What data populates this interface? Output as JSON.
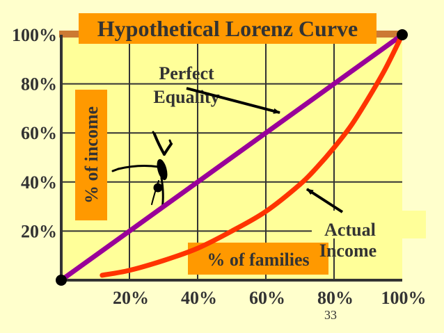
{
  "chart_data": {
    "type": "line",
    "title": "Hypothetical Lorenz Curve",
    "xlabel": "% of families",
    "ylabel": "% of income",
    "x_ticks": [
      "20%",
      "40%",
      "60%",
      "80%",
      "100%"
    ],
    "y_ticks": [
      "20%",
      "40%",
      "60%",
      "80%",
      "100%"
    ],
    "xlim": [
      0,
      100
    ],
    "ylim": [
      0,
      100
    ],
    "grid": true,
    "series": [
      {
        "name": "Perfect Equality",
        "color": "#990099",
        "x": [
          0,
          100
        ],
        "y": [
          0,
          100
        ]
      },
      {
        "name": "Actual Income",
        "color": "#ff3300",
        "x": [
          12,
          20,
          30,
          40,
          50,
          60,
          70,
          75,
          80,
          85,
          90,
          95,
          100
        ],
        "y": [
          2,
          4,
          8,
          13,
          20,
          28,
          39,
          46,
          54,
          63,
          74,
          86,
          100
        ]
      }
    ],
    "annotations": [
      {
        "text_lines": [
          "Perfect",
          "Equality"
        ],
        "target": "Perfect Equality"
      },
      {
        "text_lines": [
          "Actual",
          "Income"
        ],
        "target": "Actual Income"
      }
    ]
  },
  "page_number": "33",
  "colors": {
    "background": "#ffffcc",
    "plot_area": "#ffff99",
    "label_box": "#ff9900",
    "grid": "#333333",
    "axis": "#333333",
    "text": "#333333"
  },
  "icons": {
    "figure": "gymnast-handstand-icon"
  }
}
